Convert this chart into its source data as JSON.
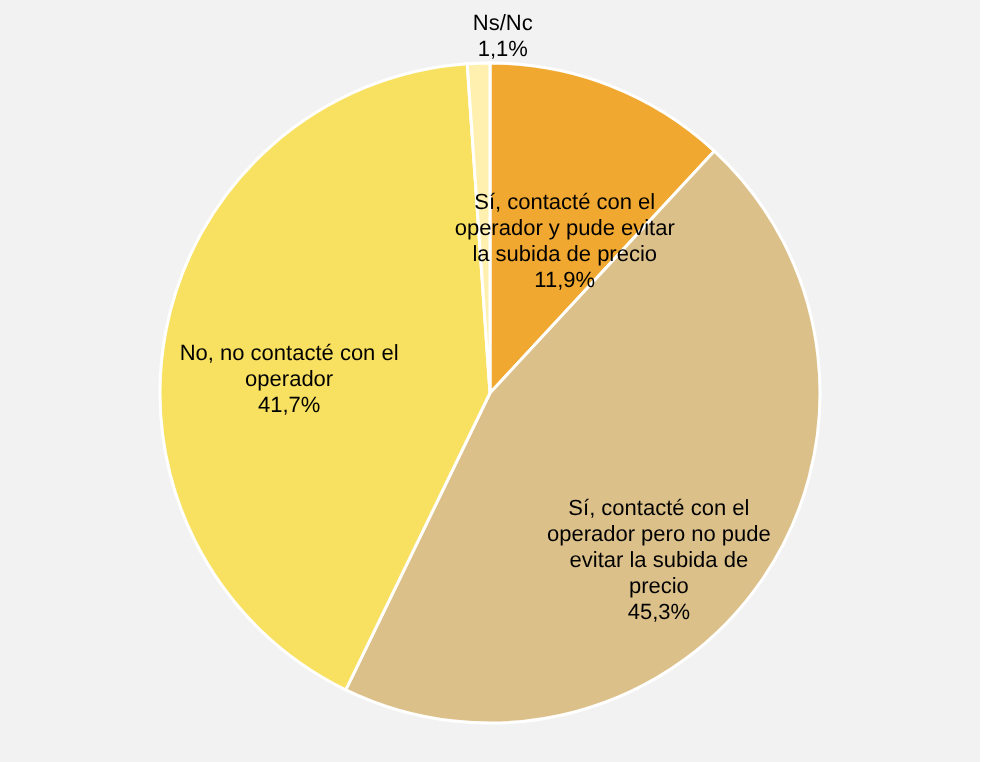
{
  "chart_data": {
    "type": "pie",
    "categories": [
      "Sí, contacté con el operador y pude evitar la subida de precio",
      "Sí, contacté con el operador pero no pude evitar la subida de precio",
      "No, no contacté con el operador",
      "Ns/Nc"
    ],
    "values": [
      11.9,
      45.3,
      41.7,
      1.1
    ],
    "value_labels": [
      "11,9%",
      "45,3%",
      "41,7%",
      "1,1%"
    ],
    "colors": [
      "#f0a830",
      "#dcc08a",
      "#f8e060",
      "#fff0b0"
    ],
    "legend": false
  }
}
